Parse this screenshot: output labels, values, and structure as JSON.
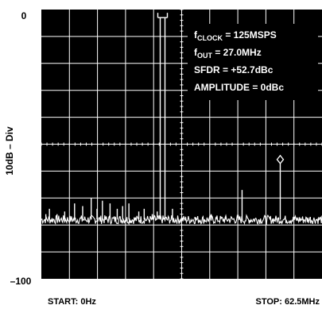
{
  "chart_data": {
    "type": "line",
    "xlabel_start": "START: 0Hz",
    "xlabel_stop": "STOP: 62.5MHz",
    "ylabel": "10dB – Div",
    "ytick_top": "0",
    "ytick_bottom": "–100",
    "xlim": [
      0,
      62.5
    ],
    "ylim": [
      -100,
      0
    ],
    "grid": true,
    "x_divisions": 10,
    "y_divisions": 10,
    "annotations": {
      "clock_prefix": "f",
      "clock_sub": "CLOCK",
      "clock_value": " = 125MSPS",
      "out_prefix": "f",
      "out_sub": "OUT",
      "out_value": " = 27.0MHz",
      "sfdr": "SFDR = +52.7dBc",
      "amplitude": "AMPLITUDE = 0dBc"
    },
    "noise_floor_db": -78,
    "fundamental": {
      "x": 27.0,
      "y": -3
    },
    "spurs": [
      {
        "x": 1.0,
        "y": -76
      },
      {
        "x": 1.8,
        "y": -74
      },
      {
        "x": 3.5,
        "y": -76
      },
      {
        "x": 5.2,
        "y": -75
      },
      {
        "x": 7.4,
        "y": -72
      },
      {
        "x": 9.2,
        "y": -73
      },
      {
        "x": 11.1,
        "y": -70
      },
      {
        "x": 12.4,
        "y": -74
      },
      {
        "x": 13.6,
        "y": -71
      },
      {
        "x": 15.3,
        "y": -72
      },
      {
        "x": 16.9,
        "y": -74
      },
      {
        "x": 18.1,
        "y": -73
      },
      {
        "x": 19.5,
        "y": -72
      },
      {
        "x": 21.7,
        "y": -75
      },
      {
        "x": 22.9,
        "y": -74
      },
      {
        "x": 24.7,
        "y": -76
      },
      {
        "x": 25.8,
        "y": -75
      },
      {
        "x": 29.2,
        "y": -74
      },
      {
        "x": 34.2,
        "y": -77
      },
      {
        "x": 37.8,
        "y": -76
      },
      {
        "x": 41.0,
        "y": -77
      },
      {
        "x": 44.7,
        "y": -67
      },
      {
        "x": 52.2,
        "y": -77
      },
      {
        "x": 53.2,
        "y": -55.7
      },
      {
        "x": 56.4,
        "y": -77
      },
      {
        "x": 59.9,
        "y": -77
      }
    ],
    "marker": {
      "x": 53.2,
      "y": -55.7
    }
  }
}
